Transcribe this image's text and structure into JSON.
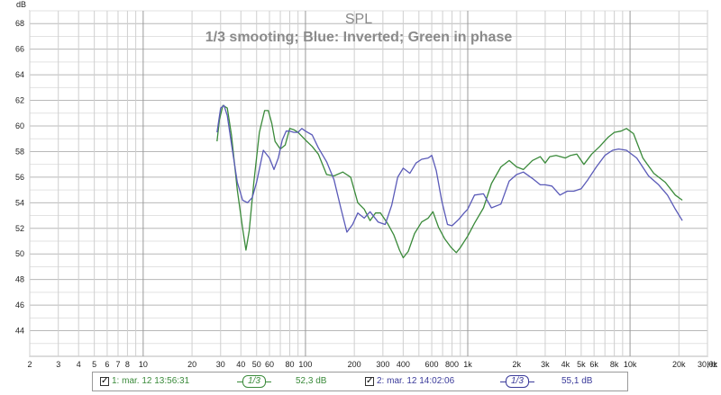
{
  "chart_data": {
    "type": "line",
    "title": "SPL",
    "subtitle": "1/3 smooting; Blue: Inverted; Green in phase",
    "yunit": "dB",
    "xunit": "Hz",
    "xscale": "log",
    "xlim": [
      2,
      30000
    ],
    "ylim": [
      42,
      69
    ],
    "grid": true,
    "y_ticks": [
      44,
      46,
      48,
      50,
      52,
      54,
      56,
      58,
      60,
      62,
      64,
      66,
      68
    ],
    "x_ticks": [
      {
        "v": 2,
        "label": "2"
      },
      {
        "v": 3,
        "label": "3"
      },
      {
        "v": 4,
        "label": "4"
      },
      {
        "v": 5,
        "label": "5"
      },
      {
        "v": 6,
        "label": "6"
      },
      {
        "v": 7,
        "label": "7"
      },
      {
        "v": 8,
        "label": "8"
      },
      {
        "v": 10,
        "label": "10"
      },
      {
        "v": 20,
        "label": "20"
      },
      {
        "v": 30,
        "label": "30"
      },
      {
        "v": 40,
        "label": "40"
      },
      {
        "v": 50,
        "label": "50"
      },
      {
        "v": 60,
        "label": "60"
      },
      {
        "v": 80,
        "label": "80"
      },
      {
        "v": 100,
        "label": "100"
      },
      {
        "v": 200,
        "label": "200"
      },
      {
        "v": 300,
        "label": "300"
      },
      {
        "v": 400,
        "label": "400"
      },
      {
        "v": 600,
        "label": "600"
      },
      {
        "v": 800,
        "label": "800"
      },
      {
        "v": 1000,
        "label": "1k"
      },
      {
        "v": 2000,
        "label": "2k"
      },
      {
        "v": 3000,
        "label": "3k"
      },
      {
        "v": 4000,
        "label": "4k"
      },
      {
        "v": 5000,
        "label": "5k"
      },
      {
        "v": 6000,
        "label": "6k"
      },
      {
        "v": 8000,
        "label": "8k"
      },
      {
        "v": 10000,
        "label": "10k"
      },
      {
        "v": 20000,
        "label": "20k"
      },
      {
        "v": 30000,
        "label": "30,0k"
      }
    ],
    "series": [
      {
        "color": "#3a8a3a",
        "x": [
          28.5,
          29.5,
          31,
          33,
          35,
          38,
          41,
          43,
          45,
          48,
          52,
          56,
          59,
          62,
          65,
          70,
          75,
          80,
          85,
          90,
          100,
          110,
          120,
          135,
          150,
          170,
          190,
          210,
          230,
          250,
          270,
          290,
          320,
          350,
          380,
          400,
          430,
          470,
          520,
          570,
          610,
          660,
          720,
          790,
          850,
          900,
          1000,
          1100,
          1250,
          1400,
          1600,
          1800,
          2000,
          2200,
          2500,
          2800,
          3000,
          3200,
          3500,
          4000,
          4300,
          4700,
          5200,
          5800,
          6500,
          7300,
          8000,
          8800,
          9500,
          10500,
          12000,
          14000,
          16500,
          19000,
          21000
        ],
        "y": [
          58.8,
          60.5,
          61.6,
          61.4,
          59.3,
          55,
          52,
          50.3,
          51.8,
          55.5,
          59.5,
          61.2,
          61.2,
          60.2,
          58.8,
          58.2,
          58.5,
          59.8,
          59.7,
          59.5,
          58.9,
          58.4,
          57.8,
          56.2,
          56.1,
          56.4,
          56,
          54,
          53.5,
          52.6,
          53.2,
          53.2,
          52.4,
          51.5,
          50.3,
          49.7,
          50.2,
          51.6,
          52.5,
          52.8,
          53.3,
          52.1,
          51.2,
          50.5,
          50.1,
          50.5,
          51.4,
          52.4,
          53.6,
          55.5,
          56.8,
          57.3,
          56.8,
          56.6,
          57.3,
          57.6,
          57.1,
          57.6,
          57.7,
          57.5,
          57.7,
          57.8,
          57,
          57.8,
          58.4,
          59.1,
          59.5,
          59.6,
          59.8,
          59.4,
          57.5,
          56.3,
          55.6,
          54.6,
          54.2
        ]
      },
      {
        "color": "#5a5ab8",
        "x": [
          28.5,
          30,
          31.5,
          33,
          35,
          38,
          41,
          44,
          47,
          50,
          55,
          60,
          64,
          68,
          72,
          76,
          80,
          85,
          90,
          95,
          100,
          110,
          120,
          135,
          150,
          165,
          180,
          195,
          210,
          230,
          250,
          280,
          310,
          340,
          370,
          400,
          440,
          480,
          520,
          570,
          600,
          640,
          690,
          750,
          800,
          880,
          950,
          1000,
          1100,
          1250,
          1400,
          1600,
          1800,
          2000,
          2200,
          2500,
          2800,
          3000,
          3300,
          3700,
          4100,
          4500,
          5000,
          5500,
          6200,
          7000,
          7800,
          8500,
          9500,
          11000,
          13000,
          15000,
          17000,
          19000,
          21000
        ],
        "y": [
          59.5,
          61.4,
          61.6,
          60.8,
          58.6,
          55.6,
          54.2,
          54,
          54.4,
          55.6,
          58.1,
          57.5,
          56.6,
          57.5,
          58.9,
          59.6,
          59.6,
          59.5,
          59.5,
          59.8,
          59.6,
          59.3,
          58.3,
          57.2,
          55.8,
          53.6,
          51.7,
          52.3,
          53.2,
          52.8,
          53.3,
          52.5,
          52.3,
          53.8,
          56,
          56.7,
          56.3,
          57.1,
          57.4,
          57.5,
          57.7,
          56.5,
          54.2,
          52.3,
          52.2,
          52.7,
          53.2,
          53.5,
          54.6,
          54.7,
          53.6,
          53.9,
          55.7,
          56.2,
          56.4,
          55.9,
          55.4,
          55.4,
          55.3,
          54.6,
          54.9,
          54.9,
          55.1,
          55.8,
          56.8,
          57.7,
          58.1,
          58.2,
          58.1,
          57.5,
          56.1,
          55.4,
          54.6,
          53.5,
          52.6
        ]
      }
    ]
  },
  "legend": {
    "items": [
      {
        "label": "1: mar. 12 13:56:31",
        "smoothing": "1/3",
        "level": "52,3 dB",
        "color": "#3a8a3a"
      },
      {
        "label": "2: mar. 12 14:02:06",
        "smoothing": "1/3",
        "level": "55,1 dB",
        "color": "#3a3a9a"
      }
    ],
    "check": "✓"
  }
}
